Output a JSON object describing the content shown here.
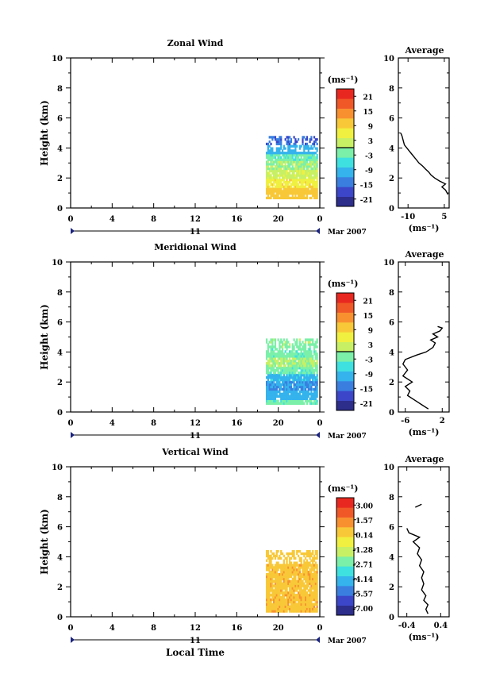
{
  "common": {
    "ylabel": "Height (km)",
    "xlabel": "Local Time",
    "xticks": [
      "0",
      "4",
      "8",
      "12",
      "16",
      "20",
      "0"
    ],
    "yticks": [
      "0",
      "2",
      "4",
      "6",
      "8",
      "10"
    ],
    "ylim": [
      0,
      10
    ],
    "xlim": [
      0,
      24
    ],
    "day_label": "11",
    "month_label": "Mar 2007",
    "unit_label": "(ms⁻¹)",
    "average_title": "Average",
    "average_xlabel": "(ms⁻¹)"
  },
  "colormap": [
    "#2d2d8c",
    "#3b46c8",
    "#3a7fe0",
    "#34b3ec",
    "#3fe0e0",
    "#7bf0a8",
    "#c8f064",
    "#f0f040",
    "#f8c838",
    "#f89030",
    "#f05828",
    "#e82820"
  ],
  "chart_data": [
    {
      "type": "heatmap",
      "title": "Zonal Wind",
      "data_span": {
        "time": [
          18.8,
          23.8
        ],
        "height": [
          0.6,
          4.8
        ]
      },
      "layers": [
        {
          "h": [
            0.6,
            1.4
          ],
          "value": 10
        },
        {
          "h": [
            1.4,
            2.0
          ],
          "value": 7
        },
        {
          "h": [
            2.0,
            2.6
          ],
          "value": 3
        },
        {
          "h": [
            2.6,
            3.2
          ],
          "value": 0
        },
        {
          "h": [
            3.2,
            3.6
          ],
          "value": -3
        },
        {
          "h": [
            3.6,
            4.2
          ],
          "value": -10
        },
        {
          "h": [
            4.2,
            4.8
          ],
          "value": -16
        }
      ],
      "colorbar": {
        "ticks": [
          "21",
          "15",
          "9",
          "3",
          "-3",
          "-9",
          "-15",
          "-21"
        ],
        "range": [
          -24,
          24
        ],
        "zero_line": 0
      },
      "average": {
        "xticks": [
          "-10",
          "5"
        ],
        "xlim": [
          -14,
          7
        ],
        "xtick_values": [
          -10,
          5
        ],
        "profile": [
          [
            6.5,
            0.9
          ],
          [
            5.5,
            1.2
          ],
          [
            4.0,
            1.4
          ],
          [
            5.5,
            1.6
          ],
          [
            3.0,
            1.8
          ],
          [
            1.0,
            2.0
          ],
          [
            -0.5,
            2.2
          ],
          [
            -1.5,
            2.4
          ],
          [
            -2.8,
            2.6
          ],
          [
            -4.0,
            2.8
          ],
          [
            -5.5,
            3.0
          ],
          [
            -6.5,
            3.2
          ],
          [
            -7.5,
            3.4
          ],
          [
            -8.5,
            3.6
          ],
          [
            -9.5,
            3.8
          ],
          [
            -10.5,
            4.0
          ],
          [
            -11.5,
            4.2
          ],
          [
            -12.0,
            4.5
          ],
          [
            -12.5,
            4.8
          ],
          [
            -13.0,
            5.0
          ]
        ]
      }
    },
    {
      "type": "heatmap",
      "title": "Meridional Wind",
      "data_span": {
        "time": [
          18.8,
          23.8
        ],
        "height": [
          0.5,
          4.9
        ]
      },
      "layers": [
        {
          "h": [
            0.5,
            0.8
          ],
          "value": -3
        },
        {
          "h": [
            0.8,
            1.4
          ],
          "value": -10
        },
        {
          "h": [
            1.4,
            2.0
          ],
          "value": -12
        },
        {
          "h": [
            2.0,
            2.6
          ],
          "value": -9
        },
        {
          "h": [
            2.6,
            3.0
          ],
          "value": -3
        },
        {
          "h": [
            3.0,
            3.6
          ],
          "value": 0
        },
        {
          "h": [
            3.6,
            4.2
          ],
          "value": -3
        },
        {
          "h": [
            4.2,
            4.9
          ],
          "value": -1
        }
      ],
      "colorbar": {
        "ticks": [
          "21",
          "15",
          "9",
          "3",
          "-3",
          "-9",
          "-15",
          "-21"
        ],
        "range": [
          -24,
          24
        ],
        "zero_line": 0
      },
      "average": {
        "xticks": [
          "-6",
          "2"
        ],
        "xlim": [
          -7.5,
          3.5
        ],
        "xtick_values": [
          -6,
          2
        ],
        "profile": [
          [
            -1.0,
            0.2
          ],
          [
            -2.5,
            0.5
          ],
          [
            -4.0,
            0.8
          ],
          [
            -5.5,
            1.1
          ],
          [
            -5.0,
            1.4
          ],
          [
            -6.0,
            1.7
          ],
          [
            -4.5,
            2.0
          ],
          [
            -6.5,
            2.4
          ],
          [
            -5.5,
            2.8
          ],
          [
            -6.5,
            3.2
          ],
          [
            -6.0,
            3.5
          ],
          [
            -3.5,
            3.8
          ],
          [
            -1.5,
            4.0
          ],
          [
            0.0,
            4.3
          ],
          [
            0.5,
            4.6
          ],
          [
            -0.5,
            4.8
          ],
          [
            1.0,
            5.0
          ],
          [
            0.0,
            5.2
          ],
          [
            1.5,
            5.4
          ],
          [
            2.0,
            5.6
          ],
          [
            1.0,
            5.7
          ]
        ]
      }
    },
    {
      "type": "heatmap",
      "title": "Vertical Wind",
      "data_span": {
        "time": [
          18.8,
          23.8
        ],
        "height": [
          0.3,
          4.6
        ]
      },
      "layers": [
        {
          "h": [
            0.3,
            3.6
          ],
          "value": 0.6
        },
        {
          "h": [
            3.6,
            4.4
          ],
          "value": 0.3
        }
      ],
      "colorbar": {
        "ticks": [
          "3.00",
          "1.57",
          "0.14",
          "-1.28",
          "-2.71",
          "-4.14",
          "-5.57",
          "-7.00"
        ],
        "range": [
          -7.7,
          3.7
        ],
        "zero_line": null
      },
      "average": {
        "xticks": [
          "-0.4",
          "0.4"
        ],
        "xlim": [
          -0.6,
          0.6
        ],
        "xtick_values": [
          -0.4,
          0.4
        ],
        "profile": [
          [
            0.1,
            0.2
          ],
          [
            0.05,
            0.5
          ],
          [
            0.1,
            0.8
          ],
          [
            0.0,
            1.1
          ],
          [
            0.05,
            1.4
          ],
          [
            -0.05,
            1.8
          ],
          [
            0.0,
            2.2
          ],
          [
            -0.05,
            2.6
          ],
          [
            0.0,
            3.0
          ],
          [
            -0.1,
            3.4
          ],
          [
            -0.05,
            3.8
          ],
          [
            -0.15,
            4.2
          ],
          [
            -0.1,
            4.6
          ],
          [
            -0.25,
            5.0
          ],
          [
            -0.1,
            5.3
          ],
          [
            -0.35,
            5.6
          ],
          [
            -0.4,
            5.9
          ]
        ],
        "segments": [
          [
            [
              -0.2,
              7.3
            ],
            [
              -0.05,
              7.5
            ]
          ]
        ]
      }
    }
  ]
}
